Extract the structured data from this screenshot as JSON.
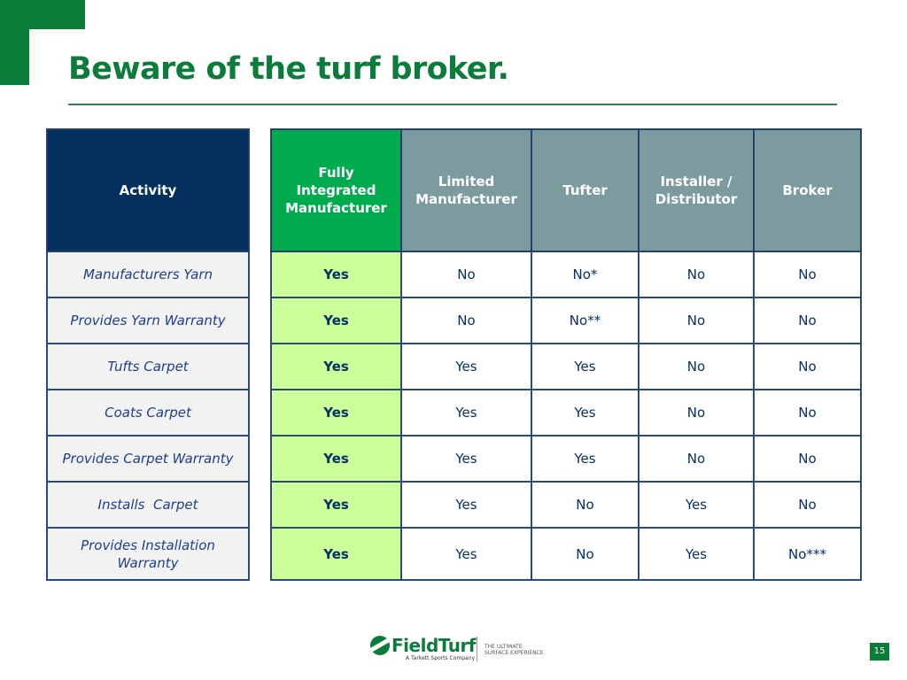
{
  "slide": {
    "title": "Beware of the turf broker.",
    "page_number": "15"
  },
  "colors": {
    "brand_green": "#0b7d3b",
    "header_navy": "#04305f",
    "header_green": "#00ab4e",
    "header_gray": "#7b9b9f",
    "highlight_column": "#ccff99",
    "text_blue": "#05306a"
  },
  "table": {
    "headers": {
      "activity": "Activity",
      "fim": "Fully Integrated Manufacturer",
      "limited": "Limited Manufacturer",
      "tufter": "Tufter",
      "installer": "Installer / Distributor",
      "broker": "Broker"
    },
    "rows": [
      {
        "activity": "Manufacturers Yarn",
        "fim": "Yes",
        "limited": "No",
        "tufter": "No*",
        "installer": "No",
        "broker": "No"
      },
      {
        "activity": "Provides Yarn Warranty",
        "fim": "Yes",
        "limited": "No",
        "tufter": "No**",
        "installer": "No",
        "broker": "No"
      },
      {
        "activity": "Tufts Carpet",
        "fim": "Yes",
        "limited": "Yes",
        "tufter": "Yes",
        "installer": "No",
        "broker": "No"
      },
      {
        "activity": "Coats Carpet",
        "fim": "Yes",
        "limited": "Yes",
        "tufter": "Yes",
        "installer": "No",
        "broker": "No"
      },
      {
        "activity": "Provides Carpet Warranty",
        "fim": "Yes",
        "limited": "Yes",
        "tufter": "Yes",
        "installer": "No",
        "broker": "No"
      },
      {
        "activity": "Installs  Carpet",
        "fim": "Yes",
        "limited": "Yes",
        "tufter": "No",
        "installer": "Yes",
        "broker": "No"
      },
      {
        "activity": "Provides Installation Warranty",
        "fim": "Yes",
        "limited": "Yes",
        "tufter": "No",
        "installer": "Yes",
        "broker": "No***"
      }
    ]
  },
  "logo": {
    "name": "FieldTurf",
    "subtitle": "A Tarkett Sports Company",
    "tagline": "THE ULTIMATE SURFACE EXPERIENCE"
  }
}
